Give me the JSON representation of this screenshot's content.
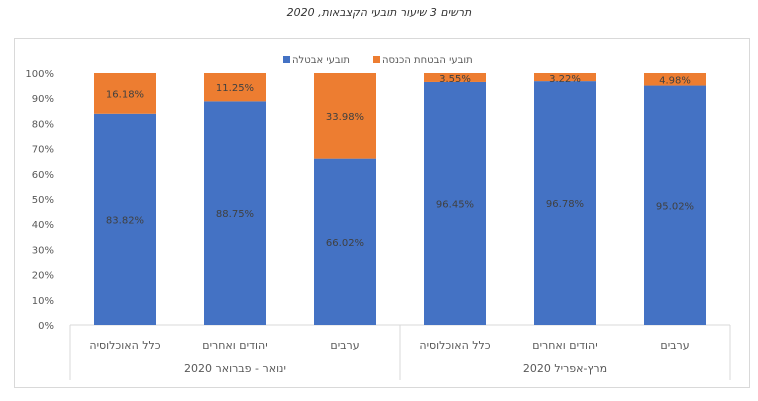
{
  "title": "תרשים 3  שיעור תובעי הקצבאות, 2020",
  "chart_data": {
    "type": "bar",
    "stacked": true,
    "title": "תרשים 3  שיעור תובעי הקצבאות, 2020",
    "legend_position": "top",
    "groups": [
      {
        "label": "ינואר - פברואר 2020",
        "categories": [
          "כלל האוכלוסיה",
          "יהודים ואחרים",
          "ערבים"
        ]
      },
      {
        "label": "מרץ-אפריל 2020",
        "categories": [
          "כלל האוכלוסיה",
          "יהודים ואחרים",
          "ערבים"
        ]
      }
    ],
    "series": [
      {
        "name": "תובעי אבטלה",
        "color": "#4472c4",
        "values": [
          83.82,
          88.75,
          66.02,
          96.45,
          96.78,
          95.02
        ],
        "labels": [
          "83.82%",
          "88.75%",
          "66.02%",
          "96.45%",
          "96.78%",
          "95.02%"
        ]
      },
      {
        "name": "תובעי הבטחת הכנסה",
        "color": "#ed7d31",
        "values": [
          16.18,
          11.25,
          33.98,
          3.55,
          3.22,
          4.98
        ],
        "labels": [
          "16.18%",
          "11.25%",
          "33.98%",
          "3.55%",
          "3.22%",
          "4.98%"
        ]
      }
    ],
    "ylim": [
      0,
      100
    ],
    "yticks": [
      "0%",
      "10%",
      "20%",
      "30%",
      "40%",
      "50%",
      "60%",
      "70%",
      "80%",
      "90%",
      "100%"
    ],
    "grid": false
  }
}
